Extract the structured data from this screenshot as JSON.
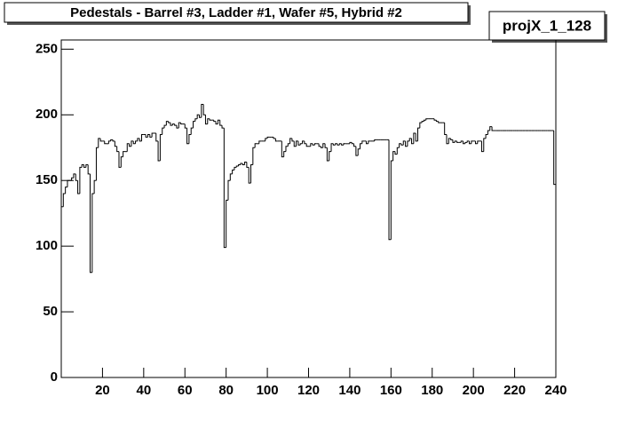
{
  "chart_data": {
    "type": "histogram",
    "title": "Pedestals - Barrel #3, Ladder #1, Wafer #5, Hybrid #2",
    "stats_name": "projX_1_128",
    "color": "#000000",
    "xlim": [
      0,
      240
    ],
    "ylim": [
      0,
      257
    ],
    "xticks": [
      20,
      40,
      60,
      80,
      100,
      120,
      140,
      160,
      180,
      200,
      220,
      240
    ],
    "yticks": [
      0,
      50,
      100,
      150,
      200,
      250
    ],
    "bins": [
      0,
      1,
      2,
      3,
      4,
      5,
      6,
      7,
      8,
      9,
      10,
      11,
      12,
      13,
      14,
      15,
      16,
      17,
      18,
      19,
      20,
      21,
      22,
      23,
      24,
      25,
      26,
      27,
      28,
      29,
      30,
      31,
      32,
      33,
      34,
      35,
      36,
      37,
      38,
      39,
      40,
      41,
      42,
      43,
      44,
      45,
      46,
      47,
      48,
      49,
      50,
      51,
      52,
      53,
      54,
      55,
      56,
      57,
      58,
      59,
      60,
      61,
      62,
      63,
      64,
      65,
      66,
      67,
      68,
      69,
      70,
      71,
      72,
      73,
      74,
      75,
      76,
      77,
      78,
      79,
      80,
      81,
      82,
      83,
      84,
      85,
      86,
      87,
      88,
      89,
      90,
      91,
      92,
      93,
      94,
      95,
      96,
      97,
      98,
      99,
      100,
      101,
      102,
      103,
      104,
      105,
      106,
      107,
      108,
      109,
      110,
      111,
      112,
      113,
      114,
      115,
      116,
      117,
      118,
      119,
      120,
      121,
      122,
      123,
      124,
      125,
      126,
      127,
      128,
      129,
      130,
      131,
      132,
      133,
      134,
      135,
      136,
      137,
      138,
      139,
      140,
      141,
      142,
      143,
      144,
      145,
      146,
      147,
      148,
      149,
      150,
      151,
      152,
      153,
      154,
      155,
      156,
      157,
      158,
      159,
      160,
      161,
      162,
      163,
      164,
      165,
      166,
      167,
      168,
      169,
      170,
      171,
      172,
      173,
      174,
      175,
      176,
      177,
      178,
      179,
      180,
      181,
      182,
      183,
      184,
      185,
      186,
      187,
      188,
      189,
      190,
      191,
      192,
      193,
      194,
      195,
      196,
      197,
      198,
      199,
      200,
      201,
      202,
      203,
      204,
      205,
      206,
      207,
      208,
      209,
      210,
      211,
      212,
      213,
      214,
      215,
      216,
      217,
      218,
      219,
      220,
      221,
      222,
      223,
      224,
      225,
      226,
      227,
      228,
      229,
      230,
      231,
      232,
      233,
      234,
      235,
      236,
      237,
      238,
      239,
      240
    ],
    "values": [
      130,
      140,
      145,
      150,
      150,
      152,
      155,
      150,
      140,
      160,
      162,
      160,
      162,
      155,
      80,
      140,
      150,
      175,
      182,
      180,
      180,
      178,
      178,
      180,
      181,
      180,
      176,
      172,
      160,
      168,
      172,
      172,
      178,
      176,
      180,
      178,
      180,
      182,
      180,
      185,
      185,
      183,
      185,
      183,
      186,
      186,
      180,
      165,
      185,
      190,
      192,
      195,
      194,
      192,
      193,
      192,
      190,
      194,
      193,
      193,
      190,
      178,
      185,
      190,
      195,
      197,
      200,
      198,
      208,
      200,
      193,
      197,
      196,
      196,
      195,
      193,
      196,
      192,
      190,
      99,
      135,
      150,
      155,
      158,
      160,
      161,
      162,
      163,
      162,
      164,
      160,
      148,
      162,
      175,
      178,
      178,
      180,
      180,
      180,
      182,
      183,
      183,
      183,
      182,
      180,
      180,
      180,
      168,
      172,
      176,
      178,
      182,
      180,
      176,
      180,
      177,
      178,
      180,
      178,
      176,
      176,
      178,
      177,
      178,
      178,
      176,
      175,
      178,
      175,
      165,
      172,
      178,
      177,
      178,
      177,
      178,
      177,
      178,
      178,
      178,
      179,
      178,
      176,
      169,
      174,
      178,
      180,
      180,
      178,
      180,
      180,
      180,
      181,
      181,
      181,
      181,
      181,
      181,
      181,
      105,
      165,
      172,
      170,
      175,
      178,
      177,
      180,
      176,
      180,
      182,
      178,
      186,
      180,
      190,
      194,
      195,
      196,
      197,
      197,
      197,
      197,
      196,
      195,
      194,
      194,
      194,
      185,
      178,
      182,
      181,
      179,
      180,
      179,
      179,
      180,
      178,
      179,
      180,
      178,
      180,
      180,
      178,
      180,
      180,
      172,
      182,
      185,
      188,
      191,
      188,
      188,
      188,
      188,
      188,
      188,
      188,
      188,
      188,
      188,
      188,
      188,
      188,
      188,
      188,
      188,
      188,
      188,
      188,
      188,
      188,
      188,
      188,
      188,
      188,
      188,
      188,
      188,
      188,
      188,
      147
    ]
  }
}
